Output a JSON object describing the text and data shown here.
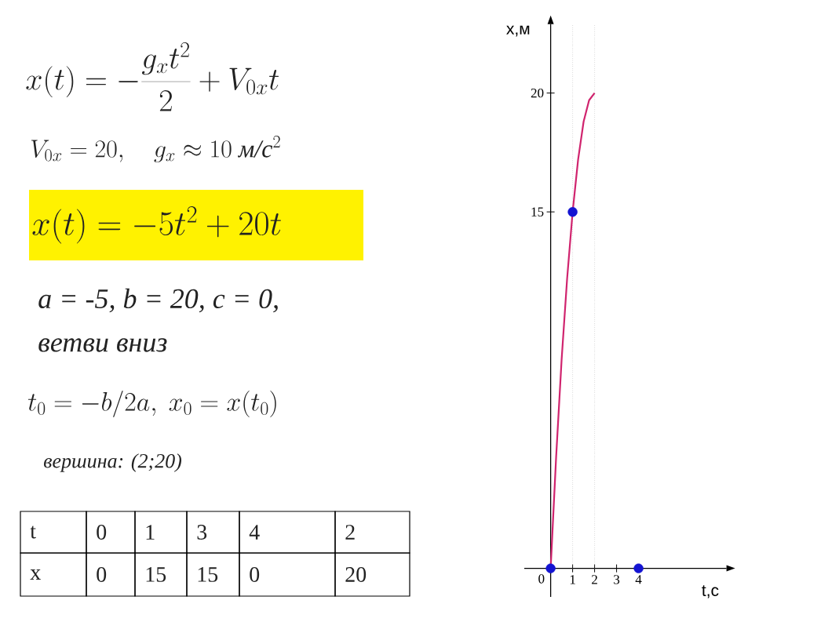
{
  "chart_data": [
    {
      "type": "other",
      "annotations": [
        "x(t) = -\\frac{g_x t^2}{2} + V_{0x} t",
        "V_{0x} = 20,\\quad g_x \\approx 10\\ \\mbox{\\itshape м/с}^2",
        "x(t) = -5t^2 + 20t",
        "a = -5, b = 20, c = 0,",
        "ветви вниз",
        "t_0 = -b/2a,\\ x_0 = x(t_0)",
        "вершина: (2;20)",
        "t",
        "0",
        "1",
        "3",
        "4",
        "2",
        "x",
        "0",
        "15",
        "15",
        "0",
        "20"
      ]
    },
    {
      "type": "line",
      "xlabel": "t,c",
      "ylabel": "x,м",
      "xlim": [
        -1.2,
        8.0
      ],
      "ylim": [
        -1.2,
        22.9
      ],
      "xticks": [
        1,
        2,
        3,
        4
      ],
      "yticks": [
        0,
        15,
        20
      ],
      "ref_lines": [
        {
          "axis": "x",
          "value": 1,
          "color": "#999999",
          "line_style": "dotted"
        },
        {
          "axis": "x",
          "value": 2,
          "color": "#999999",
          "line_style": "dotted"
        }
      ],
      "series": [
        {
          "type": "line",
          "color": "#d0246e",
          "x": [
            0,
            0.25,
            0.5,
            0.75,
            1,
            1.25,
            1.5,
            1.75,
            2
          ],
          "values": [
            0,
            4.7,
            8.8,
            12.2,
            15,
            17.2,
            18.8,
            19.7,
            20
          ]
        },
        {
          "type": "scatter",
          "marker": "circle",
          "color": "#1414d2",
          "x": [
            0,
            1,
            4
          ],
          "values": [
            0,
            15,
            0
          ]
        }
      ]
    }
  ]
}
